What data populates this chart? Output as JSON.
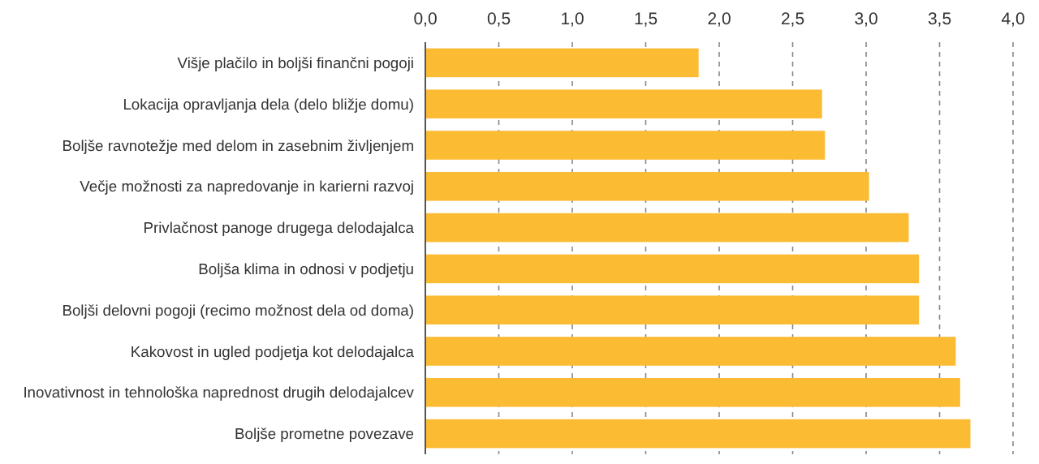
{
  "chart_data": {
    "type": "bar",
    "orientation": "horizontal",
    "categories": [
      "Višje plačilo in boljši finančni pogoji",
      "Lokacija opravljanja dela (delo bližje domu)",
      "Boljše ravnotežje med delom in zasebnim življenjem",
      "Večje možnosti za napredovanje in karierni razvoj",
      "Privlačnost panoge drugega delodajalca",
      "Boljša klima in odnosi v podjetju",
      "Boljši delovni pogoji (recimo možnost dela od doma)",
      "Kakovost in ugled podjetja kot delodajalca",
      "Inovativnost in tehnološka naprednost drugih delodajalcev",
      "Boljše prometne povezave"
    ],
    "values": [
      1.86,
      2.7,
      2.72,
      3.02,
      3.29,
      3.36,
      3.36,
      3.61,
      3.64,
      3.71
    ],
    "color": "#fbbb33",
    "xlim": [
      0,
      4
    ],
    "xticks": [
      {
        "value": 0,
        "label": "0,0"
      },
      {
        "value": 0.5,
        "label": "0,5"
      },
      {
        "value": 1,
        "label": "1,0"
      },
      {
        "value": 1.5,
        "label": "1,5"
      },
      {
        "value": 2,
        "label": "2,0"
      },
      {
        "value": 2.5,
        "label": "2,5"
      },
      {
        "value": 3,
        "label": "3,0"
      },
      {
        "value": 3.5,
        "label": "3,5"
      },
      {
        "value": 4,
        "label": "4,0"
      }
    ],
    "grid": "x"
  }
}
